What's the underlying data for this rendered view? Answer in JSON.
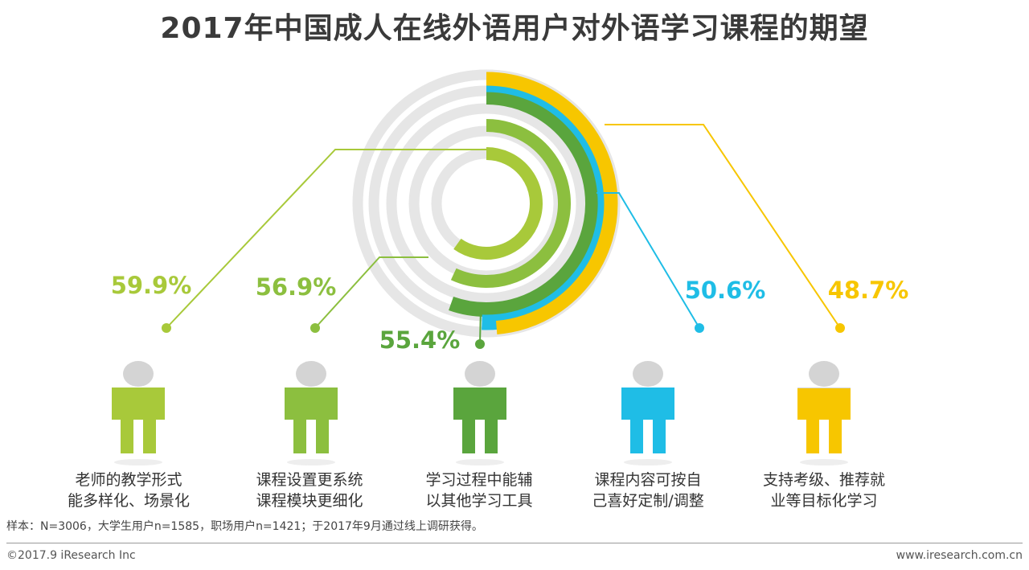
{
  "title": "2017年中国成人在线外语用户对外语学习课程的期望",
  "chart_data": {
    "type": "radial-bar",
    "title": "2017年中国成人在线外语用户对外语学习课程的期望",
    "unit": "%",
    "series": [
      {
        "label_line1": "老师的教学形式",
        "label_line2": "能多样化、场景化",
        "value": 59.9,
        "display": "59.9%",
        "color": "#a8c93a"
      },
      {
        "label_line1": "课程设置更系统",
        "label_line2": "课程模块更细化",
        "value": 56.9,
        "display": "56.9%",
        "color": "#8cbf3f"
      },
      {
        "label_line1": "学习过程中能辅",
        "label_line2": "以其他学习工具",
        "value": 55.4,
        "display": "55.4%",
        "color": "#5aa53d"
      },
      {
        "label_line1": "课程内容可按自",
        "label_line2": "己喜好定制/调整",
        "value": 50.6,
        "display": "50.6%",
        "color": "#1fbde6"
      },
      {
        "label_line1": "支持考级、推荐就",
        "label_line2": "业等目标化学习",
        "value": 48.7,
        "display": "48.7%",
        "color": "#f7c600"
      }
    ],
    "track_color": "#e6e6e6",
    "figure_color": "#d4d4d4"
  },
  "footer": {
    "note": "样本：N=3006，大学生用户n=1585，职场用户n=1421；于2017年9月通过线上调研获得。",
    "copyright": "©2017.9 iResearch Inc",
    "website": "www.iresearch.com.cn"
  }
}
